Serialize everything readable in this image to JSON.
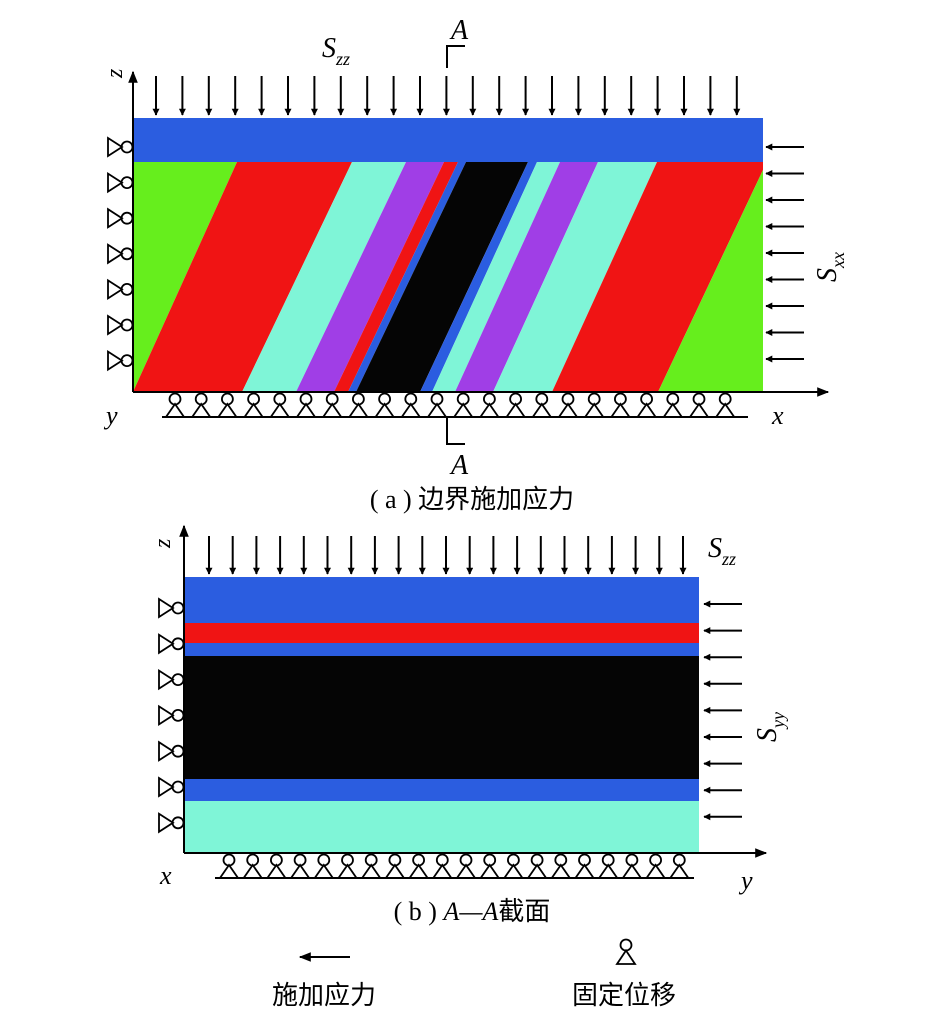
{
  "colors": {
    "blue": "#2b5de0",
    "red": "#f01414",
    "cyan": "#7ff5d7",
    "purple": "#a03ee6",
    "green": "#66ee1d",
    "black": "#050505",
    "stroke": "#000000"
  },
  "panel_a": {
    "caption": "( a ) 边界施加应力",
    "axis_z": "z",
    "axis_x": "x",
    "axis_y": "y",
    "stress_top": "S",
    "stress_top_sub": "zz",
    "stress_side": "S",
    "stress_side_sub": "xx",
    "section_mark": "A",
    "section_mark_bottom": "A",
    "layer_colors_left_to_right": [
      "green",
      "red",
      "cyan",
      "purple",
      "red",
      "blue",
      "black",
      "blue",
      "cyan",
      "purple",
      "cyan",
      "red",
      "green"
    ]
  },
  "panel_b": {
    "caption_pre": "( b ) ",
    "caption_section": "A—A",
    "caption_post": "截面",
    "axis_z": "z",
    "axis_x": "x",
    "axis_y": "y",
    "stress_top": "S",
    "stress_top_sub": "zz",
    "stress_side": "S",
    "stress_side_sub": "yy",
    "layer_colors_top_to_bottom": [
      "blue",
      "red",
      "blue",
      "black",
      "blue",
      "cyan"
    ]
  },
  "legend": {
    "arrow_icon": "arrow-left-icon",
    "arrow_label": "施加应力",
    "support_icon": "roller-support-icon",
    "support_label": "固定位移"
  }
}
